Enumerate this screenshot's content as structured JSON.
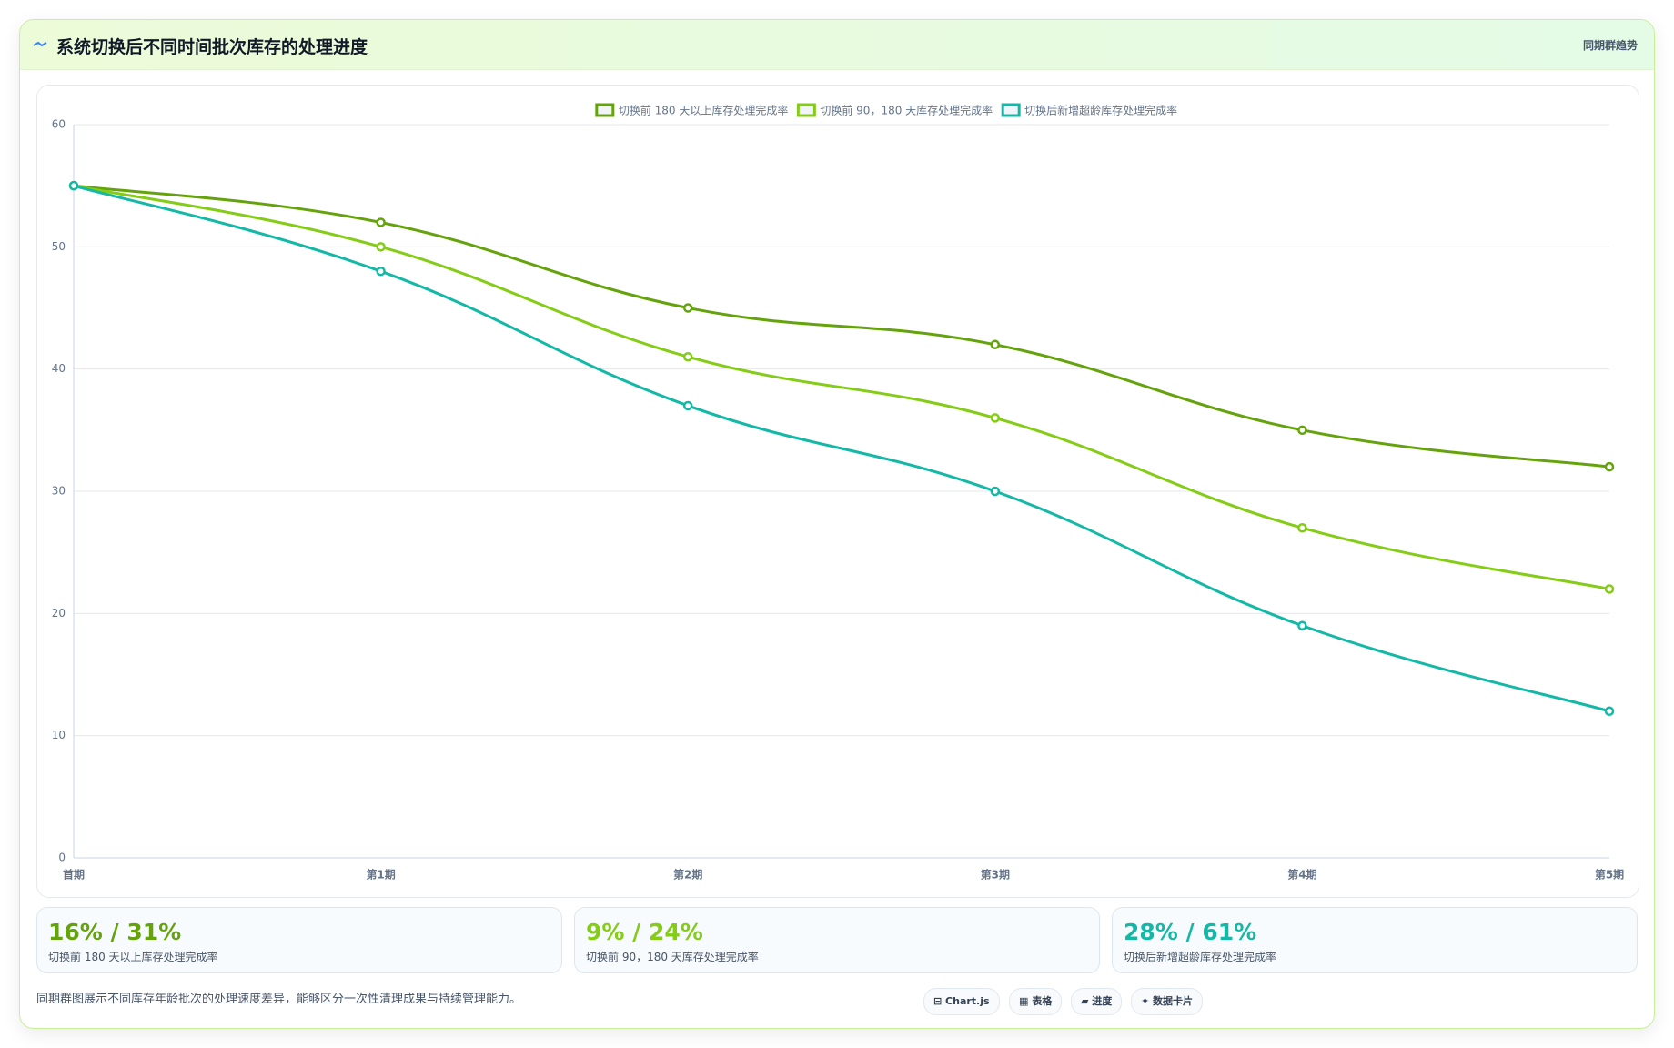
{
  "header": {
    "title": "系统切换后不同时间批次库存的处理进度",
    "badge": "同期群趋势"
  },
  "chart_data": {
    "type": "line",
    "categories": [
      "首期",
      "第1期",
      "第2期",
      "第3期",
      "第4期",
      "第5期"
    ],
    "series": [
      {
        "name": "切换前 180 天以上库存处理完成率",
        "color": "#65a30d",
        "values": [
          55,
          52,
          45,
          42,
          35,
          32
        ]
      },
      {
        "name": "切换前 90，180 天库存处理完成率",
        "color": "#84cc16",
        "values": [
          55,
          50,
          41,
          36,
          27,
          22
        ]
      },
      {
        "name": "切换后新增超龄库存处理完成率",
        "color": "#14b8a6",
        "values": [
          55,
          48,
          37,
          30,
          19,
          12
        ]
      }
    ],
    "ylim": [
      0,
      60
    ],
    "yticks": [
      0,
      10,
      20,
      30,
      40,
      50,
      60
    ],
    "grid": true,
    "legend": "top"
  },
  "stats": [
    {
      "value": "16% / 31%",
      "label": "切换前 180 天以上库存处理完成率"
    },
    {
      "value": "9% / 24%",
      "label": "切换前 90，180 天库存处理完成率"
    },
    {
      "value": "28% / 61%",
      "label": "切换后新增超龄库存处理完成率"
    }
  ],
  "footer": {
    "note": "同期群图展示不同库存年龄批次的处理速度差异，能够区分一次性清理成果与持续管理能力。",
    "buttons": [
      "⊟ Chart.js",
      "▦ 表格",
      "▰ 进度",
      "✦ 数据卡片"
    ]
  }
}
